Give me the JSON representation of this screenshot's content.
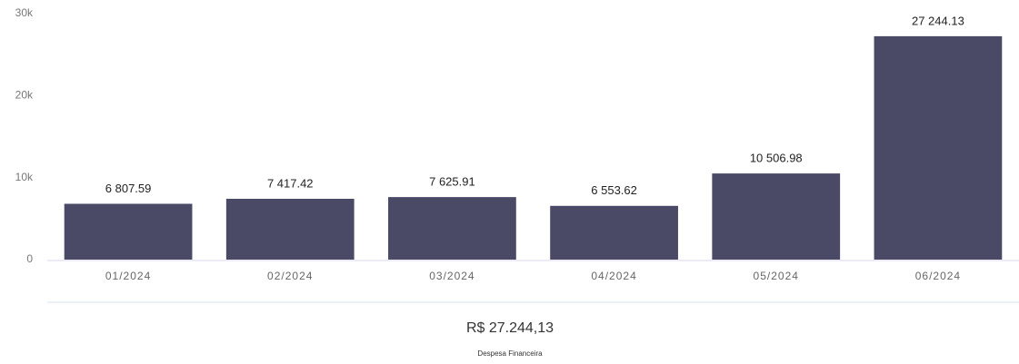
{
  "chart_data": {
    "type": "bar",
    "categories": [
      "01/2024",
      "02/2024",
      "03/2024",
      "04/2024",
      "05/2024",
      "06/2024"
    ],
    "values": [
      6807.59,
      7417.42,
      7625.91,
      6553.62,
      10506.98,
      27244.13
    ],
    "value_labels": [
      "6 807.59",
      "7 417.42",
      "7 625.91",
      "6 553.62",
      "10 506.98",
      "27 244.13"
    ],
    "color": "#4b4a66",
    "ylim": [
      0,
      30000
    ],
    "yticks": [
      0,
      {
        "value": 10000,
        "label": "10k"
      },
      {
        "value": 20000,
        "label": "20k"
      },
      {
        "value": 30000,
        "label": "30k"
      }
    ],
    "grid": false
  },
  "footer": {
    "total": "R$ 27.244,13",
    "label": "Despesa Financeira"
  }
}
